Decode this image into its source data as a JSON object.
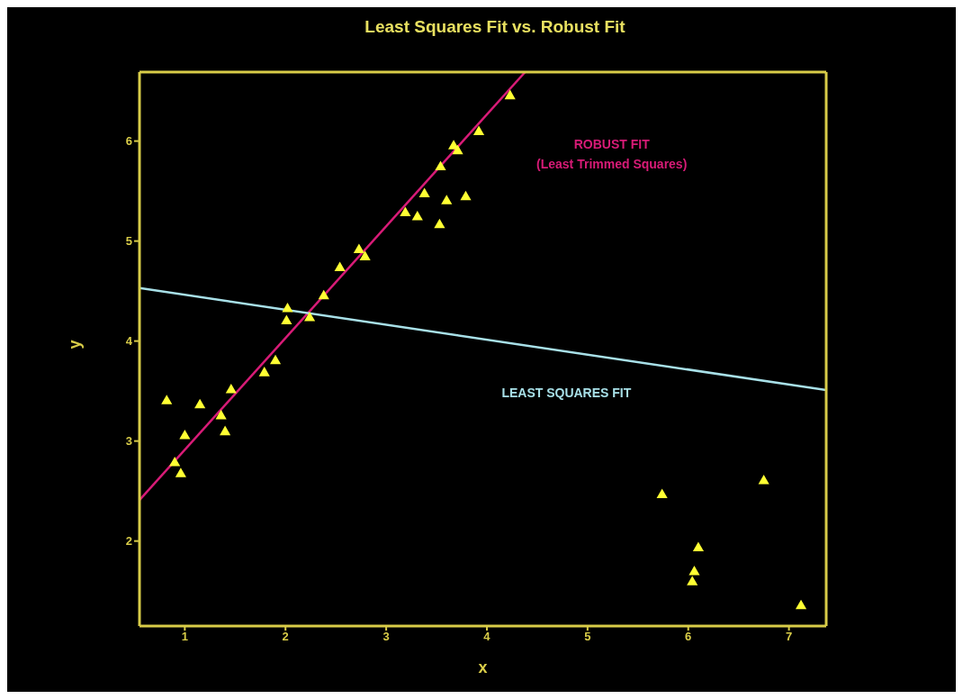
{
  "chart_data": {
    "type": "scatter",
    "title": "Least Squares Fit vs. Robust Fit",
    "xlabel": "x",
    "ylabel": "y",
    "xlim": [
      0.55,
      7.37
    ],
    "xticks": [
      1,
      2,
      3,
      4,
      5,
      6,
      7
    ],
    "ylim": [
      1.15,
      6.69
    ],
    "yticks": [
      2,
      3,
      4,
      5,
      6
    ],
    "grid": false,
    "legend": false,
    "series": [
      {
        "marker": "triangle",
        "color": "#ffff33",
        "x": [
          0.82,
          0.9,
          0.96,
          1.0,
          1.15,
          1.36,
          1.4,
          1.46,
          1.79,
          1.9,
          2.02,
          2.01,
          2.24,
          2.38,
          2.54,
          2.73,
          2.79,
          3.19,
          3.31,
          3.38,
          3.53,
          3.54,
          3.6,
          3.67,
          3.71,
          3.79,
          3.92,
          4.23,
          5.74,
          6.1,
          6.06,
          6.04,
          6.75,
          7.12
        ],
        "values": [
          3.4,
          2.78,
          2.67,
          3.05,
          3.36,
          3.25,
          3.09,
          3.51,
          3.68,
          3.8,
          4.32,
          4.2,
          4.23,
          4.45,
          4.73,
          4.91,
          4.84,
          5.28,
          5.24,
          5.47,
          5.16,
          5.74,
          5.4,
          5.95,
          5.9,
          5.44,
          6.09,
          6.45,
          2.46,
          1.93,
          1.69,
          1.59,
          2.6,
          1.35
        ]
      },
      {
        "type": "line",
        "marker": "none",
        "line_style": "solid",
        "color": "#d81b77",
        "x": [
          0.55,
          4.38
        ],
        "values": [
          2.41,
          6.69
        ]
      },
      {
        "type": "line",
        "marker": "none",
        "line_style": "solid",
        "color": "#a8e0e8",
        "x": [
          0.55,
          7.37
        ],
        "values": [
          4.53,
          3.51
        ]
      }
    ],
    "annotations": [
      "ROBUST FIT",
      "(Least Trimmed Squares)",
      "LEAST SQUARES FIT"
    ]
  }
}
